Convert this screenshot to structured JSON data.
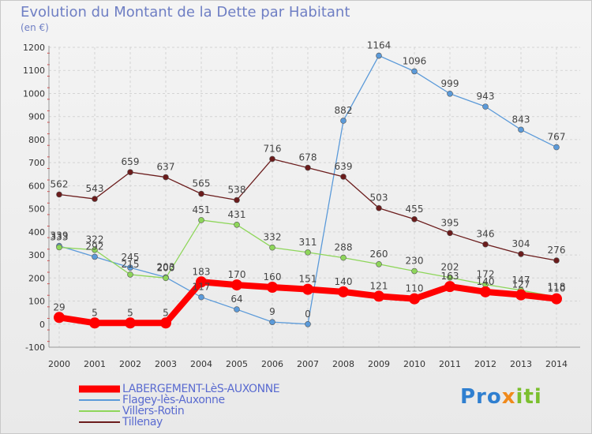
{
  "title": "Evolution du Montant de la Dette par Habitant",
  "unit_label": "(en €)",
  "logo": {
    "part1": "Pro",
    "part2": "x",
    "part3": "iti"
  },
  "chart_data": {
    "type": "line",
    "title": "Evolution du Montant de la Dette par Habitant",
    "ylabel": "(en €)",
    "xlabel": "",
    "x": [
      "2000",
      "2001",
      "2002",
      "2003",
      "2004",
      "2005",
      "2006",
      "2007",
      "2008",
      "2009",
      "2010",
      "2011",
      "2012",
      "2013",
      "2014"
    ],
    "ylim": [
      -100,
      1200
    ],
    "yticks": [
      -100,
      0,
      100,
      200,
      300,
      400,
      500,
      600,
      700,
      800,
      900,
      1000,
      1100,
      1200
    ],
    "grid": true,
    "legend_position": "bottom-left",
    "series": [
      {
        "name": "LABERGEMENT-LèS-AUXONNE",
        "color": "#ff0000",
        "width": 8,
        "labels": true,
        "values": [
          29,
          5,
          5,
          5,
          183,
          170,
          160,
          151,
          140,
          121,
          110,
          163,
          140,
          127,
          110
        ]
      },
      {
        "name": "Flagey-lès-Auxonne",
        "color": "#5b9ad9",
        "width": 1.3,
        "labels": true,
        "values": [
          339,
          292,
          245,
          203,
          117,
          64,
          9,
          0,
          882,
          1164,
          1096,
          999,
          943,
          843,
          767
        ]
      },
      {
        "name": "Villers-Rotin",
        "color": "#8ed65a",
        "width": 1.3,
        "labels": true,
        "values": [
          333,
          322,
          215,
          200,
          451,
          431,
          332,
          311,
          288,
          260,
          230,
          202,
          172,
          147,
          118
        ]
      },
      {
        "name": "Tillenay",
        "color": "#6b1c1c",
        "width": 1.3,
        "labels": true,
        "values": [
          562,
          543,
          659,
          637,
          565,
          538,
          716,
          678,
          639,
          503,
          455,
          395,
          346,
          304,
          276
        ]
      }
    ]
  }
}
